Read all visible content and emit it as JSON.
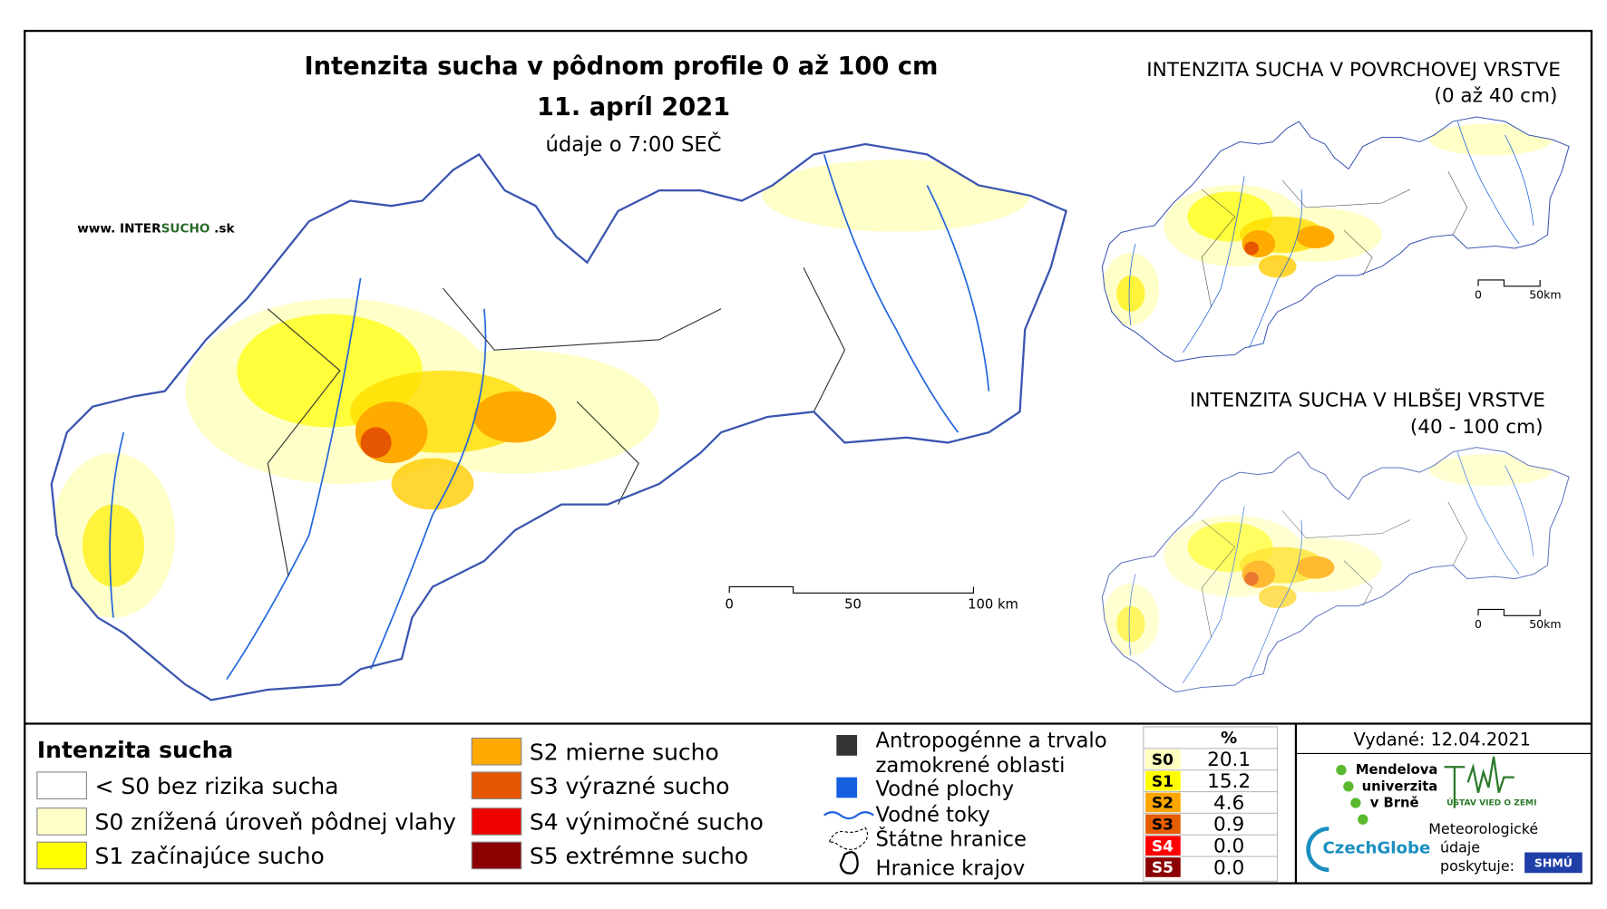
{
  "main_map": {
    "title": "Intenzita sucha v pôdnom profile 0 až 100 cm",
    "date": "11. apríl 2021",
    "note": "údaje o 7:00 SEČ",
    "website": {
      "prefix": "www. INTER",
      "brand": "SUCHO",
      "suffix": " .sk"
    },
    "scale": [
      "0",
      "50",
      "100 km"
    ]
  },
  "insets": [
    {
      "title": "INTENZITA SUCHA V POVRCHOVEJ VRSTVE",
      "subtitle": "(0 až 40 cm)",
      "scale": [
        "0",
        "50km"
      ]
    },
    {
      "title": "INTENZITA SUCHA V HLBŠEJ VRSTVE",
      "subtitle": "(40 - 100 cm)",
      "scale": [
        "0",
        "50km"
      ]
    }
  ],
  "legend": {
    "title": "Intenzita sucha",
    "classes": [
      {
        "label": "< S0 bez rizika sucha",
        "color": "#ffffff"
      },
      {
        "label": "S0 znížená úroveň pôdnej vlahy",
        "color": "#ffffc8"
      },
      {
        "label": "S1 začínajúce sucho",
        "color": "#ffff00"
      },
      {
        "label": "S2 mierne sucho",
        "color": "#ffaa00"
      },
      {
        "label": "S3 výrazné sucho",
        "color": "#e65500"
      },
      {
        "label": "S4 výnimočné sucho",
        "color": "#ee0000"
      },
      {
        "label": "S5 extrémne sucho",
        "color": "#8b0000"
      }
    ],
    "features": [
      "Antropogénne a trvalo",
      "zamokrené oblasti",
      "Vodné plochy",
      "Vodné toky",
      "Štátne hranice",
      "Hranice krajov"
    ]
  },
  "stats_table": {
    "header": "%",
    "rows": [
      {
        "class": "S0",
        "value": "20.1",
        "color": "#ffffc0"
      },
      {
        "class": "S1",
        "value": "15.2",
        "color": "#ffff00"
      },
      {
        "class": "S2",
        "value": "4.6",
        "color": "#ffa500"
      },
      {
        "class": "S3",
        "value": "0.9",
        "color": "#e65c00"
      },
      {
        "class": "S4",
        "value": "0.0",
        "color": "#ff0000"
      },
      {
        "class": "S5",
        "value": "0.0",
        "color": "#8b0000"
      }
    ]
  },
  "issued": "Vydané: 12.04.2021",
  "credits": {
    "mendelu": [
      "Mendelova",
      "univerzita",
      "v Brně"
    ],
    "czechglobe": "CzechGlobe",
    "ustav": "ÚSTAV VIED O ZEMI",
    "provider": [
      "Meteorologické",
      "údaje",
      "poskytuje:"
    ],
    "shmu": "SHMÚ"
  }
}
